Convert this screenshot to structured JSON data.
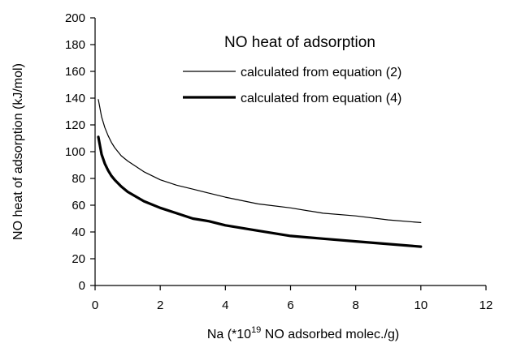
{
  "chart_data": {
    "type": "line",
    "title": "",
    "xlabel_prefix": "Na (*10",
    "xlabel_sup": "19",
    "xlabel_suffix": " NO adsorbed molec./g)",
    "ylabel": "NO heat of adsorption (kJ/mol)",
    "xlim": [
      0,
      12
    ],
    "ylim": [
      0,
      200
    ],
    "x_ticks": [
      0,
      2,
      4,
      6,
      8,
      10,
      12
    ],
    "y_ticks": [
      0,
      20,
      40,
      60,
      80,
      100,
      120,
      140,
      160,
      180,
      200
    ],
    "grid": false,
    "legend": {
      "title": "NO heat of adsorption",
      "placement": "top-right"
    },
    "series": [
      {
        "name": "calculated from equation (2)",
        "color": "#000000",
        "style": "thin",
        "x": [
          0.1,
          0.2,
          0.3,
          0.4,
          0.5,
          0.6,
          0.8,
          1.0,
          1.5,
          2.0,
          2.5,
          3.0,
          3.5,
          4.0,
          5.0,
          6.0,
          7.0,
          8.0,
          9.0,
          10.0
        ],
        "y": [
          139,
          126,
          118,
          112,
          107,
          103,
          97,
          93,
          85,
          79,
          75,
          72,
          69,
          66,
          61,
          58,
          54,
          52,
          49,
          47
        ]
      },
      {
        "name": "calculated from equation (4)",
        "color": "#000000",
        "style": "thick",
        "x": [
          0.1,
          0.2,
          0.3,
          0.4,
          0.5,
          0.6,
          0.8,
          1.0,
          1.5,
          2.0,
          2.5,
          3.0,
          3.5,
          4.0,
          5.0,
          6.0,
          7.0,
          8.0,
          9.0,
          10.0
        ],
        "y": [
          111,
          98,
          91,
          86,
          82,
          79,
          74,
          70,
          63,
          58,
          54,
          50,
          48,
          45,
          41,
          37,
          35,
          33,
          31,
          29
        ]
      }
    ]
  }
}
